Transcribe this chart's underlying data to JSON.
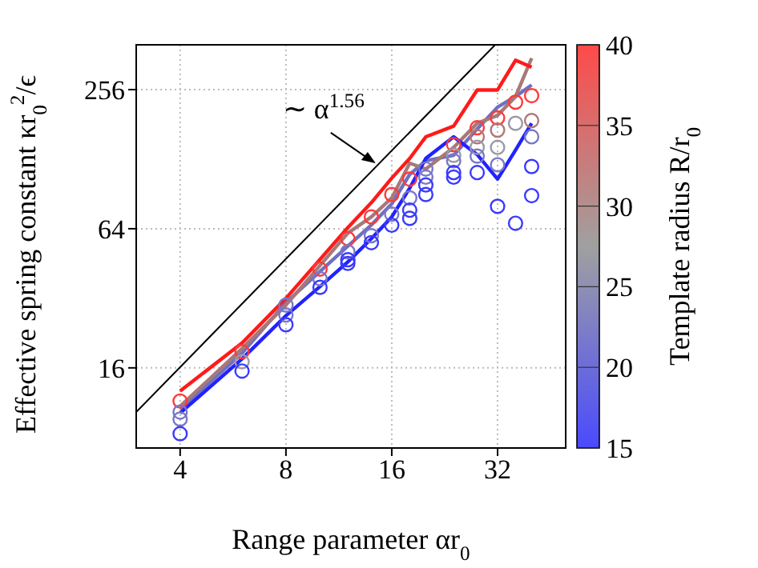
{
  "chart_data": {
    "type": "line",
    "xlabel": "Range parameter αr$_{0}$",
    "ylabel": "Effective spring constant κr$_{0}$$^{2}$/ϵ",
    "clabel": "Template radius R/r$_{0}$",
    "log": "xy",
    "grid": true,
    "xlim": [
      3,
      50
    ],
    "xticks": [
      4,
      8,
      16,
      32
    ],
    "ylim": [
      7.2,
      400
    ],
    "yticks": [
      16,
      64,
      256
    ],
    "clim": [
      15,
      40
    ],
    "cticks": [
      15,
      20,
      25,
      30,
      35,
      40
    ],
    "annotations": [
      {
        "text": "∼ α$^{1.56}$",
        "x": 14.4,
        "y": 123
      }
    ],
    "series": [
      {
        "color": "#000000",
        "x": [
          3,
          31.5
        ],
        "values": [
          10.3,
          400
        ]
      },
      {
        "color": "#7070c0",
        "x": [
          4,
          6,
          8,
          12,
          14,
          16,
          18,
          20,
          24,
          28,
          32,
          36,
          40
        ],
        "values": [
          10.6,
          18.5,
          30.7,
          53.8,
          66.5,
          82,
          110,
          126,
          133,
          173,
          215,
          239,
          268
        ]
      },
      {
        "color": "#a87878",
        "x": [
          4,
          6,
          8,
          12,
          14,
          16,
          18,
          20,
          24,
          28,
          32,
          36,
          40
        ],
        "values": [
          10.9,
          19.4,
          29.9,
          61.3,
          72,
          87,
          123,
          116,
          144,
          183,
          198,
          239,
          350
        ]
      },
      {
        "color": "#2222ff",
        "x": [
          4,
          6,
          8,
          10,
          12,
          14,
          16,
          18,
          20,
          24,
          28,
          32,
          36,
          40
        ],
        "values": [
          10.2,
          17.5,
          26.9,
          36,
          46,
          58,
          72,
          96,
          129,
          160,
          134,
          105,
          140,
          183
        ]
      },
      {
        "color": "#ff1a1a",
        "x": [
          4,
          6,
          8,
          12,
          14,
          16,
          18,
          20,
          24,
          28,
          32,
          36,
          40
        ],
        "values": [
          12.7,
          20.5,
          32,
          64.7,
          83,
          106,
          129,
          160,
          178,
          255,
          255,
          343,
          320
        ]
      },
      {
        "type": "scatter",
        "color": "#ff3a3a",
        "x": [
          4,
          6,
          10,
          12,
          14,
          16,
          18,
          24,
          28,
          32,
          36,
          40
        ],
        "values": [
          11.5,
          18.8,
          42.8,
          58,
          72,
          90,
          105,
          148,
          175,
          193,
          226,
          241
        ]
      },
      {
        "type": "scatter",
        "color": "#b07878",
        "x": [
          28,
          32,
          40
        ],
        "values": [
          160,
          171,
          188
        ]
      },
      {
        "type": "scatter",
        "color": "#9a9aa8",
        "x": [
          6,
          24,
          28,
          32,
          36
        ],
        "values": [
          17,
          133,
          144,
          144,
          183
        ]
      },
      {
        "type": "scatter",
        "color": "#7878c8",
        "x": [
          4,
          4,
          8,
          8,
          10,
          12,
          14,
          16,
          18,
          20,
          20,
          24,
          28,
          32,
          40
        ],
        "values": [
          10.3,
          9.6,
          29.9,
          27.1,
          38.9,
          50.9,
          59.7,
          74,
          87,
          116,
          107,
          126,
          132,
          121,
          160
        ]
      },
      {
        "type": "scatter",
        "color": "#3a3aff",
        "x": [
          4,
          6,
          8,
          10,
          12,
          12,
          14,
          16,
          18,
          18,
          20,
          20,
          24,
          24,
          28,
          32,
          36,
          40,
          40
        ],
        "values": [
          8.3,
          15.5,
          24.6,
          35.7,
          47,
          45.3,
          55.7,
          66.3,
          77,
          71,
          99,
          90,
          112,
          107,
          112,
          80,
          67.6,
          119,
          89
        ]
      }
    ]
  }
}
